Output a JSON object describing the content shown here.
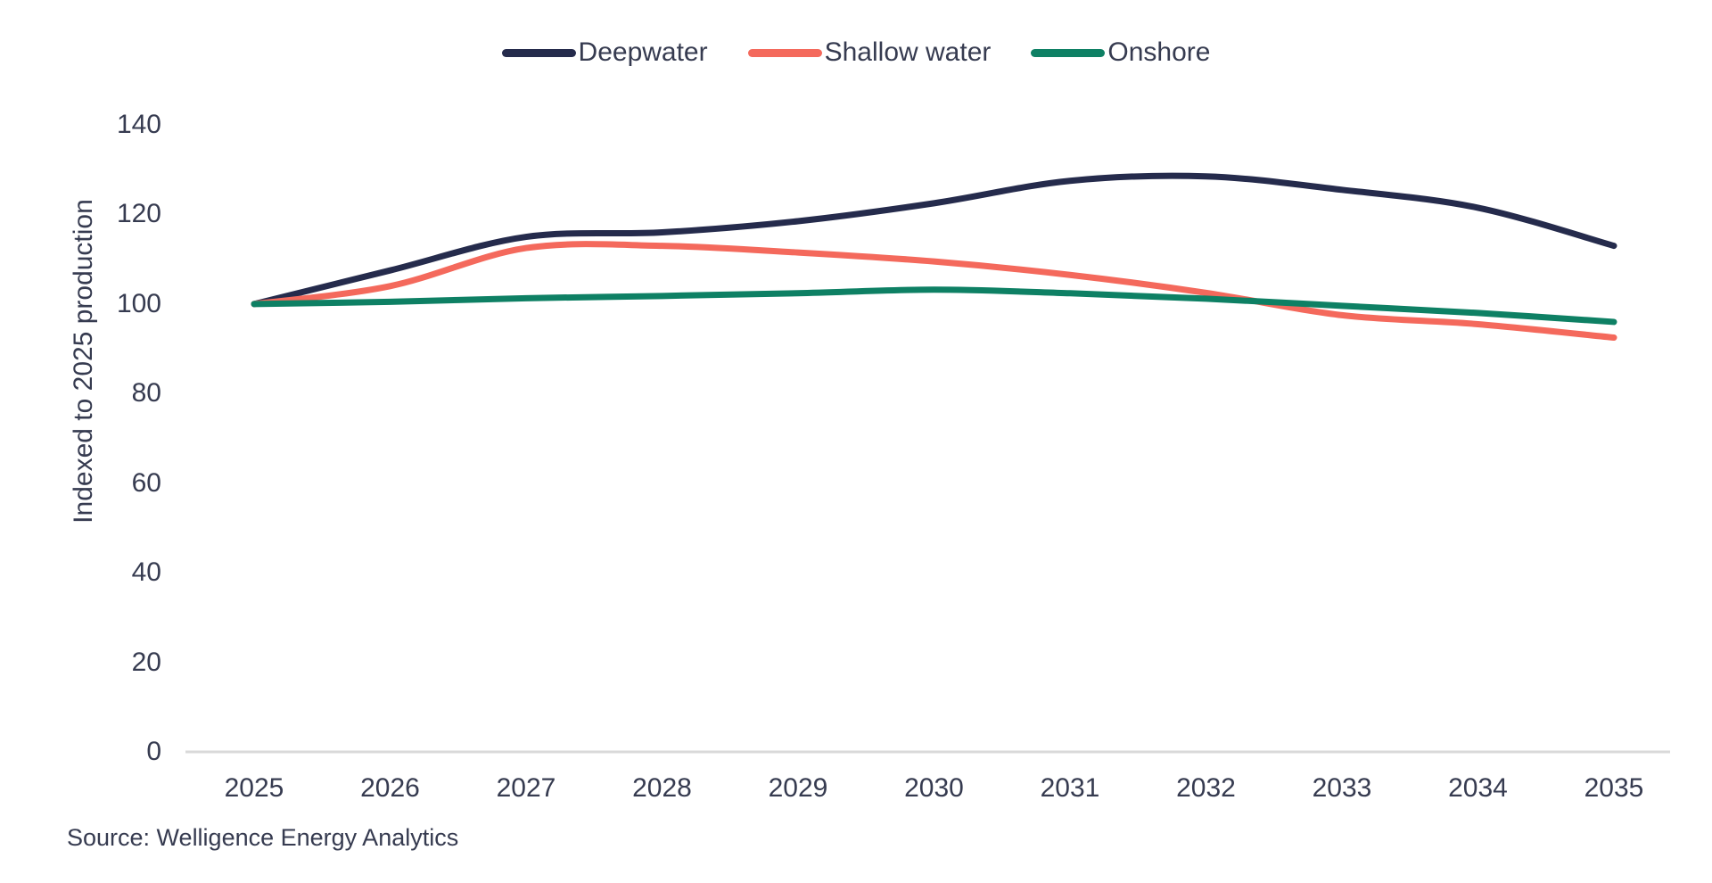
{
  "chart_data": {
    "type": "line",
    "title": "",
    "x": [
      2025,
      2026,
      2027,
      2028,
      2029,
      2030,
      2031,
      2032,
      2033,
      2034,
      2035
    ],
    "series": [
      {
        "name": "Deepwater",
        "color": "#252b4c",
        "values": [
          100,
          107.5,
          115,
          116,
          118.5,
          122.5,
          127.5,
          128.5,
          125.5,
          121.5,
          113
        ]
      },
      {
        "name": "Shallow water",
        "color": "#f4695c",
        "values": [
          100,
          104,
          112.5,
          113,
          111.5,
          109.5,
          106.5,
          102.5,
          97.5,
          95.5,
          92.5
        ]
      },
      {
        "name": "Onshore",
        "color": "#0e8064",
        "values": [
          100,
          100.5,
          101.3,
          101.8,
          102.4,
          103.2,
          102.4,
          101.2,
          99.6,
          98,
          96
        ]
      }
    ],
    "xlabel": "",
    "ylabel": "Indexed to 2025 production",
    "ylim": [
      0,
      140
    ],
    "yticks": [
      0,
      20,
      40,
      60,
      80,
      100,
      120,
      140
    ],
    "grid": false,
    "legend_position": "top"
  },
  "source": {
    "label": "Source: Welligence Energy Analytics"
  },
  "colors": {
    "axis_line": "#d9d9d9",
    "text": "#363b50"
  }
}
